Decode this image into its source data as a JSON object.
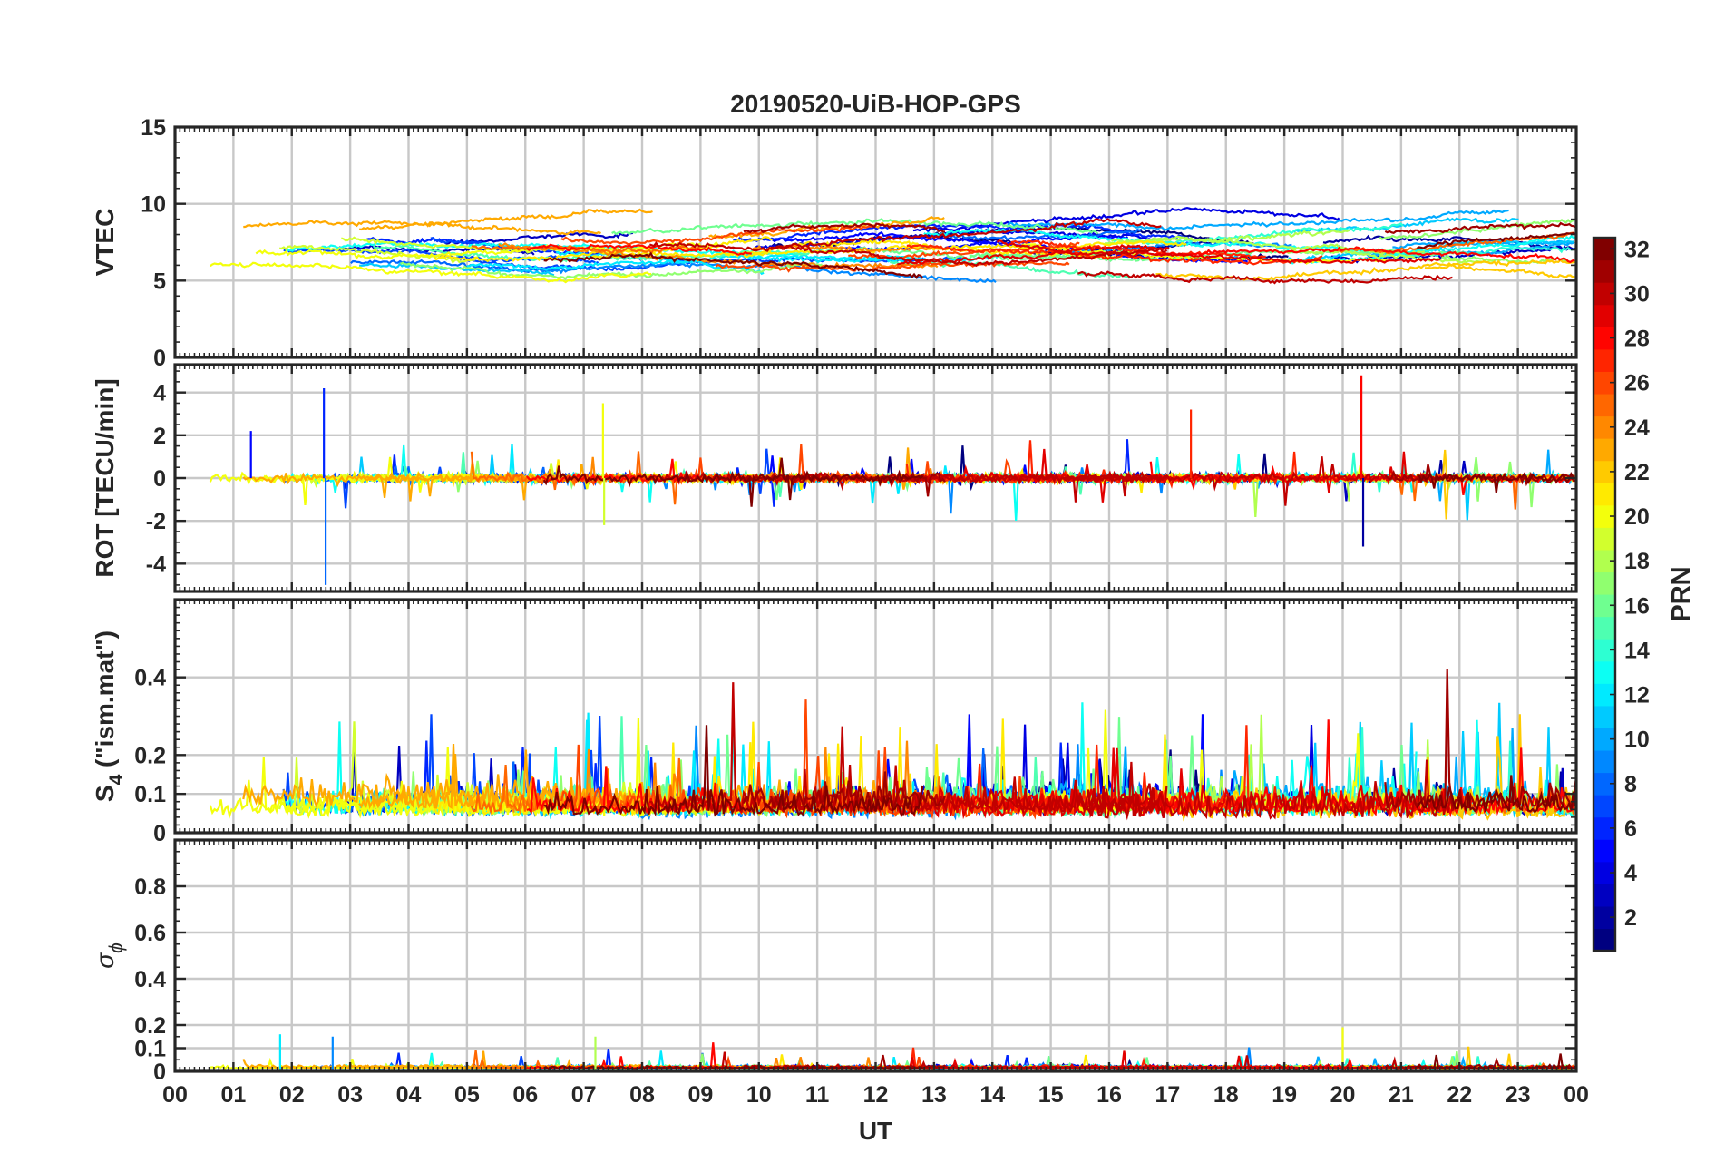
{
  "chart_data": {
    "type": "line",
    "title": "20190520-UiB-HOP-GPS",
    "xlabel": "UT",
    "x_ticks": [
      "00",
      "01",
      "02",
      "03",
      "04",
      "05",
      "06",
      "07",
      "08",
      "09",
      "10",
      "11",
      "12",
      "13",
      "14",
      "15",
      "16",
      "17",
      "18",
      "19",
      "20",
      "21",
      "22",
      "23",
      "00"
    ],
    "xlim_hours": [
      0,
      24
    ],
    "grid": true,
    "panels": [
      {
        "name": "VTEC",
        "ylabel": "VTEC",
        "ylim": [
          0,
          15
        ],
        "y_ticks": [
          {
            "v": 0,
            "t": "0"
          },
          {
            "v": 5,
            "t": "5"
          },
          {
            "v": 10,
            "t": "10"
          },
          {
            "v": 15,
            "t": "15"
          }
        ],
        "base": 7.2,
        "wander": 1.6,
        "noise": 0.25,
        "spike_prob": 0.004,
        "spike_amp": 2.0,
        "minv": 0,
        "maxv": 15
      },
      {
        "name": "ROT",
        "ylabel": "ROT [TECU/min]",
        "ylim": [
          -5.3,
          5.3
        ],
        "y_ticks": [
          {
            "v": -4,
            "t": "-4"
          },
          {
            "v": -2,
            "t": "-2"
          },
          {
            "v": 0,
            "t": "0"
          },
          {
            "v": 2,
            "t": "2"
          },
          {
            "v": 4,
            "t": "4"
          }
        ],
        "base": 0,
        "wander": 0,
        "noise": 0.18,
        "spike_prob": 0.018,
        "spike_amp": 1.6,
        "minv": -5.3,
        "maxv": 5.3,
        "events": [
          {
            "t": 2.55,
            "v": 4.2,
            "prn": 6
          },
          {
            "t": 2.58,
            "v": -5.0,
            "prn": 8
          },
          {
            "t": 7.33,
            "v": 3.5,
            "prn": 20
          },
          {
            "t": 7.35,
            "v": -2.2,
            "prn": 19
          },
          {
            "t": 20.32,
            "v": 4.8,
            "prn": 28
          },
          {
            "t": 20.35,
            "v": -3.2,
            "prn": 2
          },
          {
            "t": 17.4,
            "v": 3.2,
            "prn": 27
          },
          {
            "t": 1.3,
            "v": 2.2,
            "prn": 5
          }
        ]
      },
      {
        "name": "S4",
        "ylabel_main": "S",
        "ylabel_sub": "4",
        "ylabel_rest": " (\"ism.mat\")",
        "ylim": [
          0,
          0.6
        ],
        "y_ticks": [
          {
            "v": 0,
            "t": "0"
          },
          {
            "v": 0.1,
            "t": "0.1"
          },
          {
            "v": 0.2,
            "t": "0.2"
          },
          {
            "v": 0.4,
            "t": "0.4"
          }
        ],
        "base": 0.09,
        "wander": 0.05,
        "noise": 0.05,
        "spike_prob": 0.03,
        "spike_amp": 0.22,
        "minv": 0.03,
        "maxv": 0.6
      },
      {
        "name": "sigma_phi",
        "ylabel_main": "σ",
        "ylabel_sub": "ϕ",
        "ylim": [
          0,
          1
        ],
        "y_ticks": [
          {
            "v": 0,
            "t": "0"
          },
          {
            "v": 0.1,
            "t": "0.1"
          },
          {
            "v": 0.2,
            "t": "0.2"
          },
          {
            "v": 0.4,
            "t": "0.4"
          },
          {
            "v": 0.6,
            "t": "0.6"
          },
          {
            "v": 0.8,
            "t": "0.8"
          }
        ],
        "base": 0.02,
        "wander": 0.01,
        "noise": 0.01,
        "spike_prob": 0.01,
        "spike_amp": 0.08,
        "minv": 0,
        "maxv": 1,
        "events": [
          {
            "t": 20.0,
            "v": 0.19,
            "prn": 20
          },
          {
            "t": 7.2,
            "v": 0.15,
            "prn": 18
          },
          {
            "t": 1.8,
            "v": 0.16,
            "prn": 12
          },
          {
            "t": 2.7,
            "v": 0.15,
            "prn": 9
          }
        ]
      }
    ],
    "colorbar": {
      "label": "PRN",
      "range": [
        1,
        32
      ],
      "ticks": [
        "2",
        "4",
        "6",
        "8",
        "10",
        "12",
        "14",
        "16",
        "18",
        "20",
        "22",
        "24",
        "26",
        "28",
        "30",
        "32"
      ],
      "colormap": "jet"
    },
    "series_note_prns": 32
  }
}
